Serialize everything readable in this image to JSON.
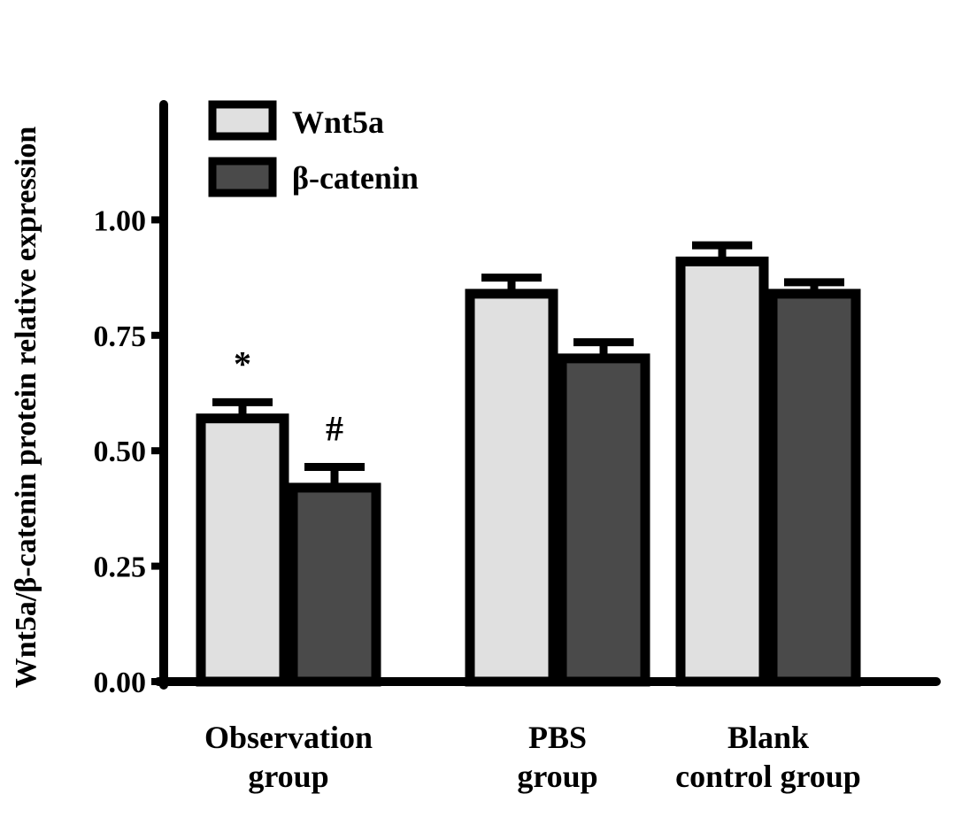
{
  "chart_data": {
    "type": "bar",
    "title": "",
    "ylabel": "Wnt5a/β-catenin protein relative expression",
    "xlabel": "",
    "ylim": [
      0,
      1.25
    ],
    "yticks": [
      "0.00",
      "0.25",
      "0.50",
      "0.75",
      "1.00"
    ],
    "categories": [
      [
        "Observation",
        "group"
      ],
      [
        "PBS",
        "group"
      ],
      [
        "Blank",
        "control group"
      ]
    ],
    "series": [
      {
        "name": "Wnt5a",
        "color": "#e0e0e0",
        "values": [
          0.57,
          0.84,
          0.91
        ],
        "errors": [
          0.035,
          0.035,
          0.035
        ]
      },
      {
        "name": "β-catenin",
        "color": "#4a4a4a",
        "values": [
          0.42,
          0.7,
          0.84
        ],
        "errors": [
          0.045,
          0.035,
          0.025
        ]
      }
    ],
    "annotations": [
      {
        "category": 0,
        "series": 0,
        "text": "*"
      },
      {
        "category": 0,
        "series": 1,
        "text": "#"
      }
    ],
    "legend": {
      "position": "top-left"
    },
    "grid": false
  }
}
